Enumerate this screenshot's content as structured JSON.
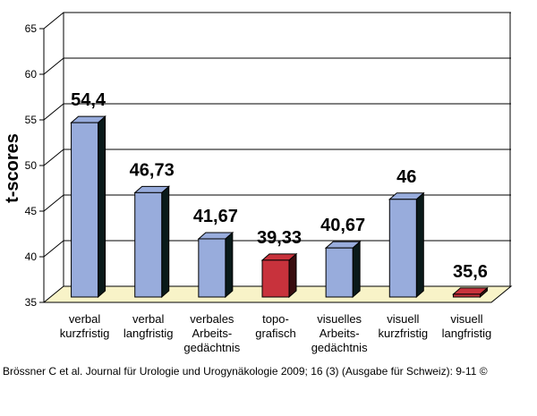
{
  "chart_data": {
    "type": "bar",
    "title": "",
    "xlabel": "",
    "ylabel": "t-scores",
    "ylim": [
      35,
      65
    ],
    "yticks": [
      35,
      40,
      45,
      50,
      55,
      60,
      65
    ],
    "grid": true,
    "categories": [
      [
        "verbal",
        "kurzfristig"
      ],
      [
        "verbal",
        "langfristig"
      ],
      [
        "verbales",
        "Arbeits-",
        "gedächtnis"
      ],
      [
        "topo-",
        "grafisch"
      ],
      [
        "visuelles",
        "Arbeits-",
        "gedächtnis"
      ],
      [
        "visuell",
        "kurzfristig"
      ],
      [
        "visuell",
        "langfristig"
      ]
    ],
    "values": [
      54.4,
      46.73,
      41.67,
      39.33,
      40.67,
      46,
      35.6
    ],
    "data_labels": [
      "54,4",
      "46,73",
      "41,67",
      "39,33",
      "40,67",
      "46",
      "35,6"
    ],
    "bar_colors": [
      "#98acdc",
      "#98acdc",
      "#98acdc",
      "#c8323c",
      "#98acdc",
      "#98acdc",
      "#c8323c"
    ],
    "floor_color": "#f8f3c8"
  },
  "citation": "Brössner C et al. Journal für Urologie und Urogynäkologie 2009; 16 (3) (Ausgabe für Schweiz): 9-11 ©"
}
